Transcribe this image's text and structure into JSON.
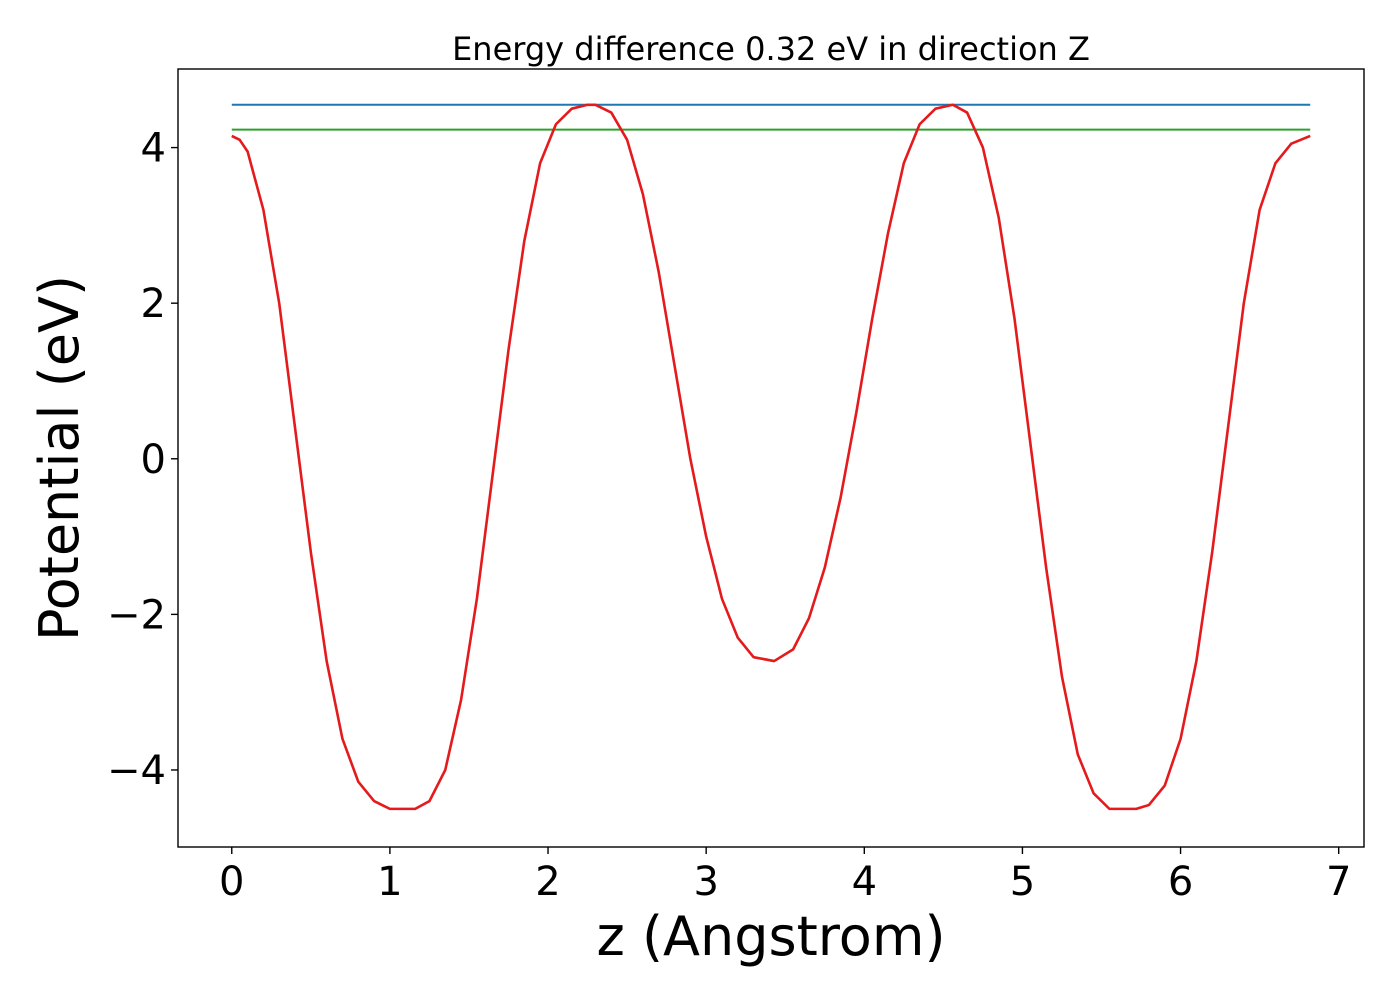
{
  "chart_data": {
    "type": "line",
    "title": "Energy difference 0.32 eV in direction Z",
    "xlabel": "z (Angstrom)",
    "ylabel": "Potential (eV)",
    "xlim": [
      -0.34,
      7.16
    ],
    "ylim": [
      -4.99,
      5.01
    ],
    "xticks": [
      0,
      1,
      2,
      3,
      4,
      5,
      6,
      7
    ],
    "yticks": [
      -4,
      -2,
      0,
      2,
      4
    ],
    "xtick_labels": [
      "0",
      "1",
      "2",
      "3",
      "4",
      "5",
      "6",
      "7"
    ],
    "ytick_labels": [
      "−4",
      "−2",
      "0",
      "2",
      "4"
    ],
    "grid": false,
    "legend": "none",
    "series": [
      {
        "color": "#1f77b4",
        "x": [
          0,
          6.82
        ],
        "y": [
          4.55,
          4.55
        ]
      },
      {
        "color": "#2ca02c",
        "x": [
          0,
          6.82
        ],
        "y": [
          4.23,
          4.23
        ]
      },
      {
        "color": "#e41a1c",
        "x": [
          0.0,
          0.05,
          0.1,
          0.2,
          0.3,
          0.4,
          0.5,
          0.6,
          0.7,
          0.8,
          0.9,
          1.0,
          1.1,
          1.16,
          1.25,
          1.35,
          1.45,
          1.55,
          1.65,
          1.75,
          1.85,
          1.95,
          2.05,
          2.15,
          2.25,
          2.3,
          2.4,
          2.5,
          2.6,
          2.7,
          2.8,
          2.9,
          3.0,
          3.1,
          3.2,
          3.3,
          3.43,
          3.55,
          3.65,
          3.75,
          3.85,
          3.95,
          4.05,
          4.15,
          4.25,
          4.35,
          4.45,
          4.56,
          4.65,
          4.75,
          4.85,
          4.95,
          5.05,
          5.15,
          5.25,
          5.35,
          5.45,
          5.55,
          5.65,
          5.72,
          5.8,
          5.9,
          6.0,
          6.1,
          6.2,
          6.3,
          6.4,
          6.5,
          6.6,
          6.7,
          6.82
        ],
        "y": [
          4.15,
          4.1,
          3.95,
          3.2,
          2.0,
          0.4,
          -1.2,
          -2.6,
          -3.6,
          -4.15,
          -4.4,
          -4.5,
          -4.5,
          -4.5,
          -4.4,
          -4.0,
          -3.1,
          -1.8,
          -0.2,
          1.4,
          2.8,
          3.8,
          4.3,
          4.5,
          4.55,
          4.55,
          4.45,
          4.1,
          3.4,
          2.4,
          1.2,
          0.0,
          -1.0,
          -1.8,
          -2.3,
          -2.55,
          -2.6,
          -2.45,
          -2.05,
          -1.4,
          -0.5,
          0.6,
          1.8,
          2.9,
          3.8,
          4.3,
          4.5,
          4.55,
          4.45,
          4.0,
          3.1,
          1.8,
          0.2,
          -1.4,
          -2.8,
          -3.8,
          -4.3,
          -4.5,
          -4.5,
          -4.5,
          -4.45,
          -4.2,
          -3.6,
          -2.6,
          -1.2,
          0.4,
          2.0,
          3.2,
          3.8,
          4.05,
          4.15
        ]
      }
    ]
  }
}
